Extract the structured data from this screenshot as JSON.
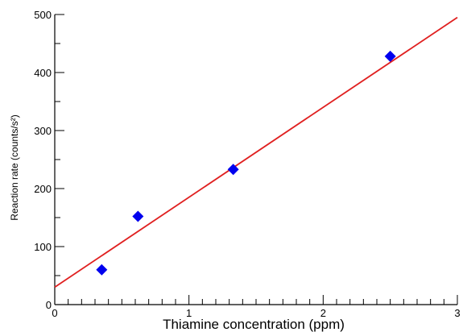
{
  "chart_data": {
    "type": "scatter",
    "title": "",
    "xlabel": "Thiamine concentration (ppm)",
    "ylabel": "Reaction rate (counts/s²)",
    "xlim": [
      0,
      3
    ],
    "ylim": [
      0,
      500
    ],
    "x_ticks": [
      "0",
      "1",
      "2",
      "3"
    ],
    "y_ticks": [
      "0",
      "100",
      "200",
      "300",
      "400",
      "500"
    ],
    "grid": false,
    "series": [
      {
        "type": "scatter",
        "marker": "diamond",
        "color": "#0000ee",
        "points": [
          {
            "x": 0.35,
            "y": 60
          },
          {
            "x": 0.62,
            "y": 152
          },
          {
            "x": 1.33,
            "y": 233
          },
          {
            "x": 2.5,
            "y": 428
          }
        ]
      },
      {
        "type": "line",
        "color": "#e02020",
        "points": [
          {
            "x": 0,
            "y": 30
          },
          {
            "x": 3,
            "y": 495
          }
        ]
      }
    ]
  }
}
